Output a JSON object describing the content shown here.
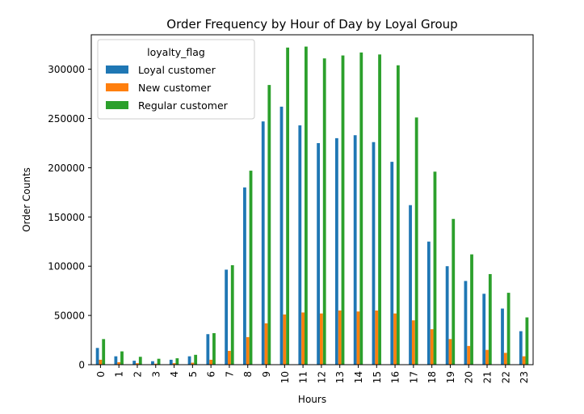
{
  "chart_data": {
    "type": "bar",
    "title": "Order Frequency by Hour of Day by Loyal Group",
    "xlabel": "Hours",
    "ylabel": "Order Counts",
    "ylim": [
      0,
      335000
    ],
    "yticks": [
      0,
      50000,
      100000,
      150000,
      200000,
      250000,
      300000
    ],
    "grid": false,
    "legend": {
      "title": "loyalty_flag",
      "placement": "top-left"
    },
    "categories": [
      "0",
      "1",
      "2",
      "3",
      "4",
      "5",
      "6",
      "7",
      "8",
      "9",
      "10",
      "11",
      "12",
      "13",
      "14",
      "15",
      "16",
      "17",
      "18",
      "19",
      "20",
      "21",
      "22",
      "23"
    ],
    "series": [
      {
        "name": "Loyal customer",
        "color": "#1f77b4",
        "values": [
          17000,
          8500,
          4000,
          3500,
          5000,
          8500,
          31000,
          96500,
          180000,
          247000,
          262000,
          243000,
          225000,
          230000,
          233000,
          226000,
          206000,
          162000,
          125000,
          100000,
          85000,
          72000,
          57000,
          34000
        ]
      },
      {
        "name": "New customer",
        "color": "#ff7f0e",
        "values": [
          5000,
          2500,
          1500,
          1000,
          1500,
          2000,
          5000,
          14000,
          28000,
          42000,
          51000,
          53000,
          52000,
          55000,
          54000,
          55000,
          52000,
          45000,
          36000,
          26000,
          19000,
          15000,
          12000,
          8500
        ]
      },
      {
        "name": "Regular customer",
        "color": "#2ca02c",
        "values": [
          26000,
          13500,
          8000,
          6000,
          6500,
          10000,
          32000,
          101000,
          197000,
          284000,
          322000,
          323000,
          311000,
          314000,
          317000,
          315000,
          304000,
          251000,
          196000,
          148000,
          112000,
          92000,
          73000,
          48000
        ]
      }
    ]
  }
}
